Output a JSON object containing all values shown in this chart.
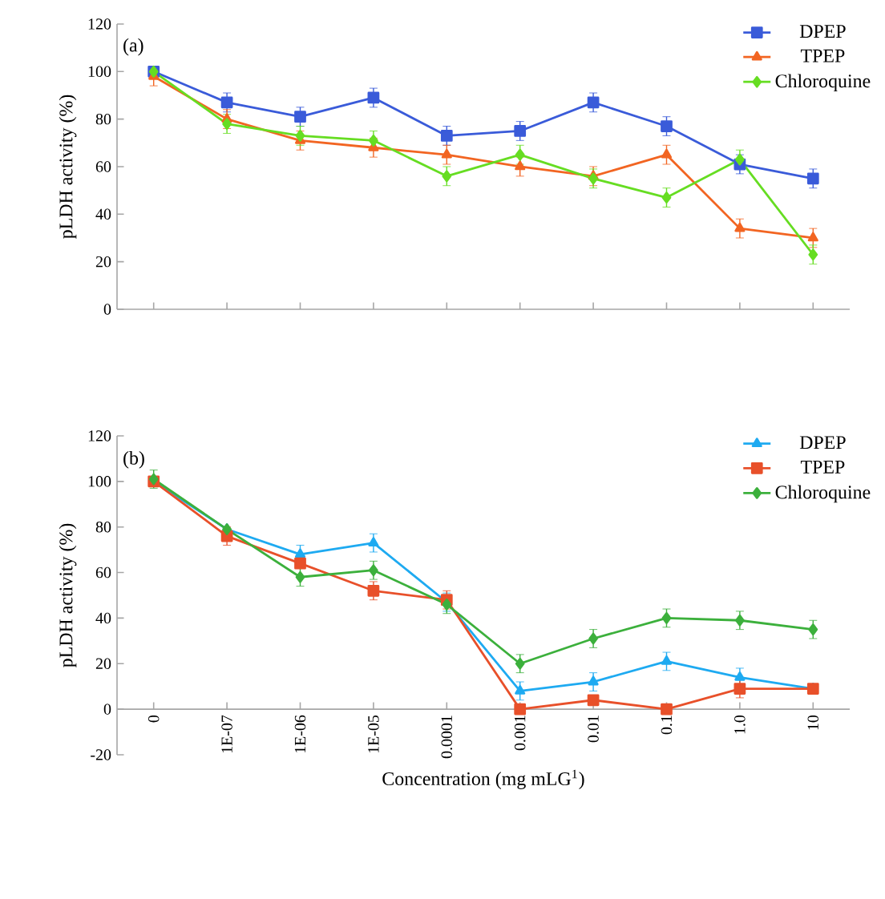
{
  "chart_data": [
    {
      "type": "line",
      "annotations": [
        "(a)"
      ],
      "ylabel": "pLDH activity (%)",
      "categories": [
        "0",
        "1E-07",
        "1E-06",
        "1E-05",
        "0.0001",
        "0.001",
        "0.01",
        "0.1",
        "1.0",
        "10"
      ],
      "ylim": [
        0,
        120
      ],
      "yticks": [
        0,
        20,
        40,
        60,
        80,
        100,
        120
      ],
      "tick_labels": "y",
      "legend": "top right",
      "series": [
        {
          "name": "DPEP",
          "color": "#3a5bd9",
          "marker": "square",
          "values": [
            100,
            87,
            81,
            89,
            73,
            75,
            87,
            77,
            61,
            55
          ],
          "errors": [
            null,
            4,
            4,
            4,
            4,
            4,
            4,
            4,
            4,
            4
          ]
        },
        {
          "name": "TPEP",
          "color": "#f26522",
          "marker": "triangle",
          "values": [
            98,
            80,
            71,
            68,
            65,
            60,
            56,
            65,
            34,
            30
          ],
          "errors": [
            4,
            4,
            4,
            4,
            4,
            4,
            4,
            4,
            4,
            4
          ]
        },
        {
          "name": "Chloroquine",
          "color": "#66dd22",
          "marker": "diamond",
          "values": [
            100,
            78,
            73,
            71,
            56,
            65,
            55,
            47,
            63,
            23
          ],
          "errors": [
            null,
            4,
            4,
            4,
            4,
            4,
            4,
            4,
            4,
            4
          ]
        }
      ]
    },
    {
      "type": "line",
      "annotations": [
        "(b)"
      ],
      "ylabel": "pLDH activity (%)",
      "xlabel": "Concentration (mg mLG$^{1}$)",
      "categories": [
        "0",
        "1E-07",
        "1E-06",
        "1E-05",
        "0.0001",
        "0.001",
        "0.01",
        "0.1",
        "1.0",
        "10"
      ],
      "ylim": [
        -20,
        120
      ],
      "yticks": [
        -20,
        0,
        20,
        40,
        60,
        80,
        100,
        120
      ],
      "legend": "top right",
      "series": [
        {
          "name": "DPEP",
          "color": "#1eaaf1",
          "marker": "triangle",
          "values": [
            100,
            79,
            68,
            73,
            47,
            8,
            12,
            21,
            14,
            9
          ],
          "errors": [
            null,
            null,
            4,
            4,
            4,
            4,
            4,
            4,
            4,
            null
          ]
        },
        {
          "name": "TPEP",
          "color": "#e8502a",
          "marker": "square",
          "values": [
            100,
            76,
            64,
            52,
            48,
            0,
            4,
            0,
            9,
            9
          ],
          "errors": [
            null,
            4,
            null,
            4,
            4,
            null,
            null,
            null,
            4,
            null
          ]
        },
        {
          "name": "Chloroquine",
          "color": "#3cb03c",
          "marker": "diamond",
          "values": [
            101,
            79,
            58,
            61,
            46,
            20,
            31,
            40,
            39,
            35
          ],
          "errors": [
            4,
            null,
            4,
            4,
            4,
            4,
            4,
            4,
            4,
            4
          ]
        }
      ]
    }
  ]
}
